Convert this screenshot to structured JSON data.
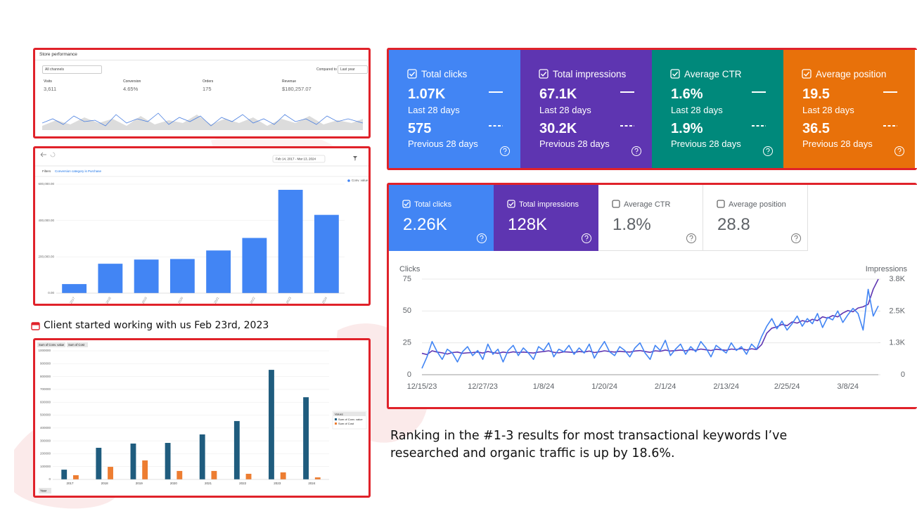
{
  "store_performance": {
    "title": "Store performance",
    "channel": "All channels",
    "compared_to": "Compared to",
    "comparison": "Last year",
    "metrics": [
      {
        "label": "Visits",
        "value": "3,611"
      },
      {
        "label": "Conversion",
        "value": "4.65%"
      },
      {
        "label": "Orders",
        "value": "175"
      },
      {
        "label": "Revenue",
        "value": "$180,257.07"
      }
    ]
  },
  "gsc_top": {
    "cards": [
      {
        "label": "Total clicks",
        "value": "1.07K",
        "period": "Last 28 days",
        "previous_value": "575",
        "previous_period": "Previous 28 days",
        "color": "#4285f4"
      },
      {
        "label": "Total impressions",
        "value": "67.1K",
        "period": "Last 28 days",
        "previous_value": "30.2K",
        "previous_period": "Previous 28 days",
        "color": "#5e35b1"
      },
      {
        "label": "Average CTR",
        "value": "1.6%",
        "period": "Last 28 days",
        "previous_value": "1.9%",
        "previous_period": "Previous 28 days",
        "color": "#00897b"
      },
      {
        "label": "Average position",
        "value": "19.5",
        "period": "Last 28 days",
        "previous_value": "36.5",
        "previous_period": "Previous 28 days",
        "color": "#e8710a"
      }
    ]
  },
  "caption_left": "Client started working with us Feb 23rd, 2023",
  "gsc_bottom": {
    "cards": [
      {
        "label": "Total clicks",
        "value": "2.26K",
        "selected": true,
        "color": "#4285f4"
      },
      {
        "label": "Total impressions",
        "value": "128K",
        "selected": true,
        "color": "#5e35b1"
      },
      {
        "label": "Average CTR",
        "value": "1.8%",
        "selected": false
      },
      {
        "label": "Average position",
        "value": "28.8",
        "selected": false
      }
    ]
  },
  "caption_right": "Ranking in the #1-3 results for most transactional keywords I’ve researched and organic traffic is up by 18.6%.",
  "chart_data": [
    {
      "type": "bar",
      "date_range": "Feb 14, 2017 - Mar 13, 2024",
      "filter_label": "Filters",
      "filter": "Conversion category is Purchase",
      "categories": [
        "2017",
        "2018",
        "2019",
        "2020",
        "2021",
        "2022",
        "2023",
        "2024"
      ],
      "series": [
        {
          "name": "Conv. value",
          "color": "#4285f4",
          "values": [
            50000,
            162000,
            185000,
            188000,
            235000,
            304000,
            569000,
            431000
          ]
        }
      ],
      "ylim": [
        0,
        600000
      ],
      "yticks": [
        {
          "value": 0,
          "label": "0.00"
        },
        {
          "value": 200000,
          "label": "200,000.00"
        },
        {
          "value": 400000,
          "label": "400,000.00"
        },
        {
          "value": 600000,
          "label": "600,000.00"
        }
      ],
      "grid": true
    },
    {
      "type": "bar",
      "x_label": "Year",
      "legend_title": "Values",
      "categories": [
        "2017",
        "2018",
        "2019",
        "2020",
        "2021",
        "2022",
        "2023",
        "2024"
      ],
      "series": [
        {
          "name": "Sum of Conv. value",
          "color": "#1f5c7e",
          "values": [
            76000,
            246000,
            279000,
            284000,
            350000,
            454000,
            852000,
            639000
          ]
        },
        {
          "name": "Sum of Cost",
          "color": "#ed7d31",
          "values": [
            33000,
            98000,
            148000,
            66000,
            66000,
            44000,
            55000,
            16000
          ]
        }
      ],
      "ylim": [
        0,
        1000000
      ],
      "yticks": [
        0,
        100000,
        200000,
        300000,
        400000,
        500000,
        600000,
        700000,
        800000,
        900000,
        1000000
      ],
      "grid": true
    },
    {
      "type": "line",
      "y_label": "Clicks",
      "y2_label": "Impressions",
      "categories": [
        "12/15/23",
        null,
        null,
        null,
        null,
        null,
        null,
        null,
        null,
        null,
        null,
        null,
        "12/27/23",
        null,
        null,
        null,
        null,
        null,
        null,
        null,
        null,
        null,
        null,
        null,
        "1/8/24",
        null,
        null,
        null,
        null,
        null,
        null,
        null,
        null,
        null,
        null,
        null,
        "1/20/24",
        null,
        null,
        null,
        null,
        null,
        null,
        null,
        null,
        null,
        null,
        null,
        "2/1/24",
        null,
        null,
        null,
        null,
        null,
        null,
        null,
        null,
        null,
        null,
        null,
        "2/13/24",
        null,
        null,
        null,
        null,
        null,
        null,
        null,
        null,
        null,
        null,
        null,
        "2/25/24",
        null,
        null,
        null,
        null,
        null,
        null,
        null,
        null,
        null,
        null,
        null,
        "3/8/24",
        null,
        null,
        null,
        null,
        null,
        null
      ],
      "series": [
        {
          "name": "Clicks",
          "color": "#4285f4",
          "values": [
            5,
            14,
            26,
            18,
            12,
            20,
            17,
            10,
            18,
            22,
            15,
            19,
            12,
            24,
            16,
            20,
            10,
            19,
            23,
            15,
            21,
            17,
            12,
            22,
            19,
            25,
            14,
            20,
            18,
            23,
            16,
            21,
            17,
            24,
            13,
            20,
            26,
            18,
            15,
            22,
            19,
            14,
            21,
            25,
            17,
            12,
            23,
            19,
            27,
            15,
            20,
            24,
            16,
            22,
            18,
            26,
            21,
            14,
            23,
            20,
            17,
            25,
            19,
            22,
            16,
            24,
            20,
            30,
            38,
            44,
            36,
            42,
            35,
            40,
            46,
            38,
            44,
            40,
            48,
            37,
            45,
            43,
            50,
            41,
            47,
            52,
            48,
            35,
            67,
            46,
            54
          ]
        },
        {
          "name": "Impressions",
          "color": "#5e35b1",
          "axis": "y2",
          "values": [
            850,
            800,
            950,
            900,
            870,
            820,
            880,
            900,
            850,
            870,
            880,
            900,
            860,
            920,
            880,
            850,
            900,
            870,
            910,
            880,
            900,
            880,
            860,
            900,
            920,
            950,
            890,
            870,
            910,
            900,
            880,
            920,
            900,
            940,
            880,
            910,
            950,
            920,
            900,
            930,
            910,
            900,
            940,
            960,
            920,
            890,
            950,
            930,
            980,
            940,
            960,
            980,
            950,
            1000,
            970,
            1020,
            990,
            960,
            1010,
            990,
            970,
            1020,
            1000,
            1040,
            980,
            1030,
            1000,
            1200,
            1650,
            1850,
            1900,
            2000,
            1950,
            2100,
            2050,
            2150,
            2100,
            2200,
            2150,
            2300,
            2250,
            2350,
            2300,
            2450,
            2550,
            2500,
            2650,
            2700,
            2800,
            3400,
            3800
          ]
        }
      ],
      "ylim": [
        0,
        75
      ],
      "yticks": [
        0,
        25,
        50,
        75
      ],
      "y2lim": [
        0,
        3800
      ],
      "y2ticks": [
        0,
        {
          "value": 1267,
          "label": "1.3K"
        },
        {
          "value": 2533,
          "label": "2.5K"
        },
        {
          "value": 3800,
          "label": "3.8K"
        }
      ],
      "grid": true
    }
  ]
}
